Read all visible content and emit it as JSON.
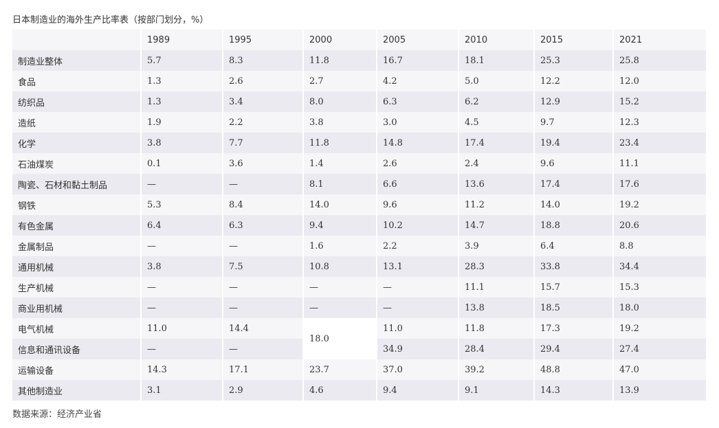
{
  "title": "日本制造业的海外生产比率表（按部门划分，%）",
  "source": "数据来源：经济产业省",
  "columns": [
    "",
    "1989",
    "1995",
    "2000",
    "2005",
    "2010",
    "2015",
    "2021"
  ],
  "rows": [
    {
      "label": "制造业整体",
      "values": [
        "5.7",
        "8.3",
        "11.8",
        "16.7",
        "18.1",
        "25.3",
        "25.8"
      ]
    },
    {
      "label": "食品",
      "values": [
        "1.3",
        "2.6",
        "2.7",
        "4.2",
        "5.0",
        "12.2",
        "12.0"
      ]
    },
    {
      "label": "纺织品",
      "values": [
        "1.3",
        "3.4",
        "8.0",
        "6.3",
        "6.2",
        "12.9",
        "15.2"
      ]
    },
    {
      "label": "造纸",
      "values": [
        "1.9",
        "2.2",
        "3.8",
        "3.0",
        "4.5",
        "9.7",
        "12.3"
      ]
    },
    {
      "label": "化学",
      "values": [
        "3.8",
        "7.7",
        "11.8",
        "14.8",
        "17.4",
        "19.4",
        "23.4"
      ]
    },
    {
      "label": "石油煤炭",
      "values": [
        "0.1",
        "3.6",
        "1.4",
        "2.6",
        "2.4",
        "9.6",
        "11.1"
      ]
    },
    {
      "label": "陶瓷、石材和黏土制品",
      "values": [
        "—",
        "—",
        "8.1",
        "6.6",
        "13.6",
        "17.4",
        "17.6"
      ]
    },
    {
      "label": "钢铁",
      "values": [
        "5.3",
        "8.4",
        "14.0",
        "9.6",
        "11.2",
        "14.0",
        "19.2"
      ]
    },
    {
      "label": "有色金属",
      "values": [
        "6.4",
        "6.3",
        "9.4",
        "10.2",
        "14.7",
        "18.8",
        "20.6"
      ]
    },
    {
      "label": "金属制品",
      "values": [
        "—",
        "—",
        "1.6",
        "2.2",
        "3.9",
        "6.4",
        "8.8"
      ]
    },
    {
      "label": "通用机械",
      "values": [
        "3.8",
        "7.5",
        "10.8",
        "13.1",
        "28.3",
        "33.8",
        "34.4"
      ]
    },
    {
      "label": "生产机械",
      "values": [
        "—",
        "—",
        "—",
        "—",
        "11.1",
        "15.7",
        "15.3"
      ]
    },
    {
      "label": "商业用机械",
      "values": [
        "—",
        "—",
        "—",
        "—",
        "13.8",
        "18.5",
        "18.0"
      ]
    },
    {
      "label": "电气机械",
      "values": [
        "11.0",
        "14.4",
        "18.0",
        "11.0",
        "11.8",
        "17.3",
        "19.2"
      ]
    },
    {
      "label": "信息和通讯设备",
      "values": [
        "—",
        "—",
        "",
        "34.9",
        "28.4",
        "29.4",
        "27.4"
      ]
    },
    {
      "label": "运输设备",
      "values": [
        "14.3",
        "17.1",
        "23.7",
        "37.0",
        "39.2",
        "48.8",
        "47.0"
      ]
    },
    {
      "label": "其他制造业",
      "values": [
        "3.1",
        "2.9",
        "4.6",
        "9.4",
        "9.1",
        "14.3",
        "13.9"
      ]
    }
  ]
}
